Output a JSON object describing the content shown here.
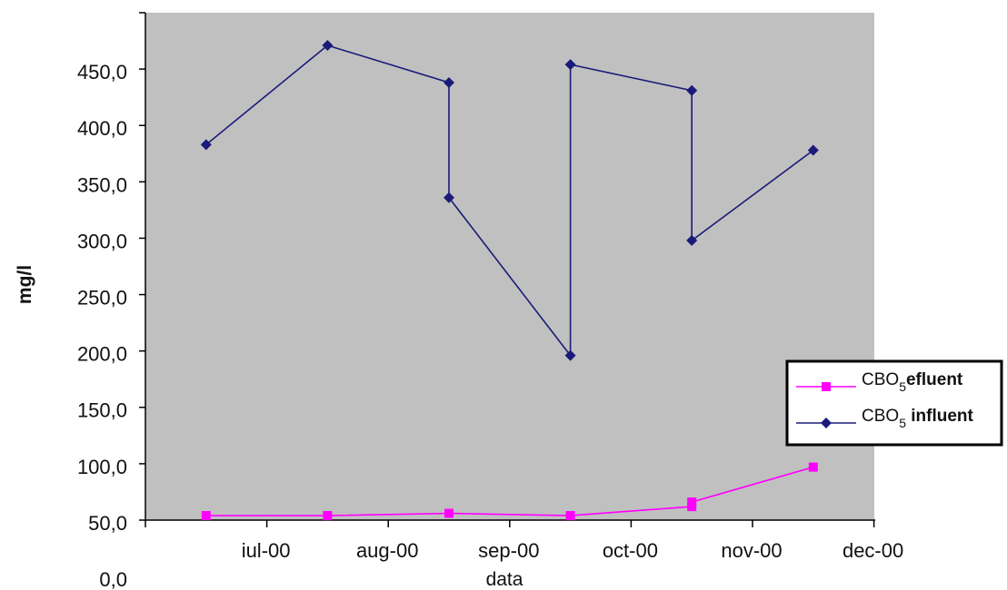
{
  "chart_data": {
    "type": "line",
    "title": "",
    "xlabel": "data",
    "ylabel": "mg/l",
    "ylim": [
      0,
      450
    ],
    "y_ticks": [
      "0,0",
      "50,0",
      "100,0",
      "150,0",
      "200,0",
      "250,0",
      "300,0",
      "350,0",
      "400,0",
      "450,0"
    ],
    "x_ticks": [
      "iul-00",
      "aug-00",
      "sep-00",
      "oct-00",
      "nov-00",
      "dec-00"
    ],
    "grid": false,
    "plot_background": "#c0c0c0",
    "legend": {
      "placement": "right",
      "entries": [
        {
          "base": "CBO",
          "sub": "5",
          "suffix": "efluent"
        },
        {
          "base": "CBO",
          "sub": "5",
          "suffix": " influent"
        }
      ]
    },
    "series": [
      {
        "color": "#1a1a7a",
        "marker": "diamond",
        "x": [
          -0.5,
          0.5,
          1.5,
          1.5,
          2.5,
          2.5,
          3.5,
          3.5,
          4.5
        ],
        "values": [
          333,
          421,
          388,
          286,
          146,
          404,
          381,
          248,
          328
        ]
      },
      {
        "color": "#ff00ff",
        "marker": "square",
        "x": [
          -0.5,
          0.5,
          1.5,
          2.5,
          3.5,
          3.5,
          4.5
        ],
        "values": [
          4,
          4,
          6,
          4,
          12,
          16,
          47
        ]
      }
    ]
  }
}
